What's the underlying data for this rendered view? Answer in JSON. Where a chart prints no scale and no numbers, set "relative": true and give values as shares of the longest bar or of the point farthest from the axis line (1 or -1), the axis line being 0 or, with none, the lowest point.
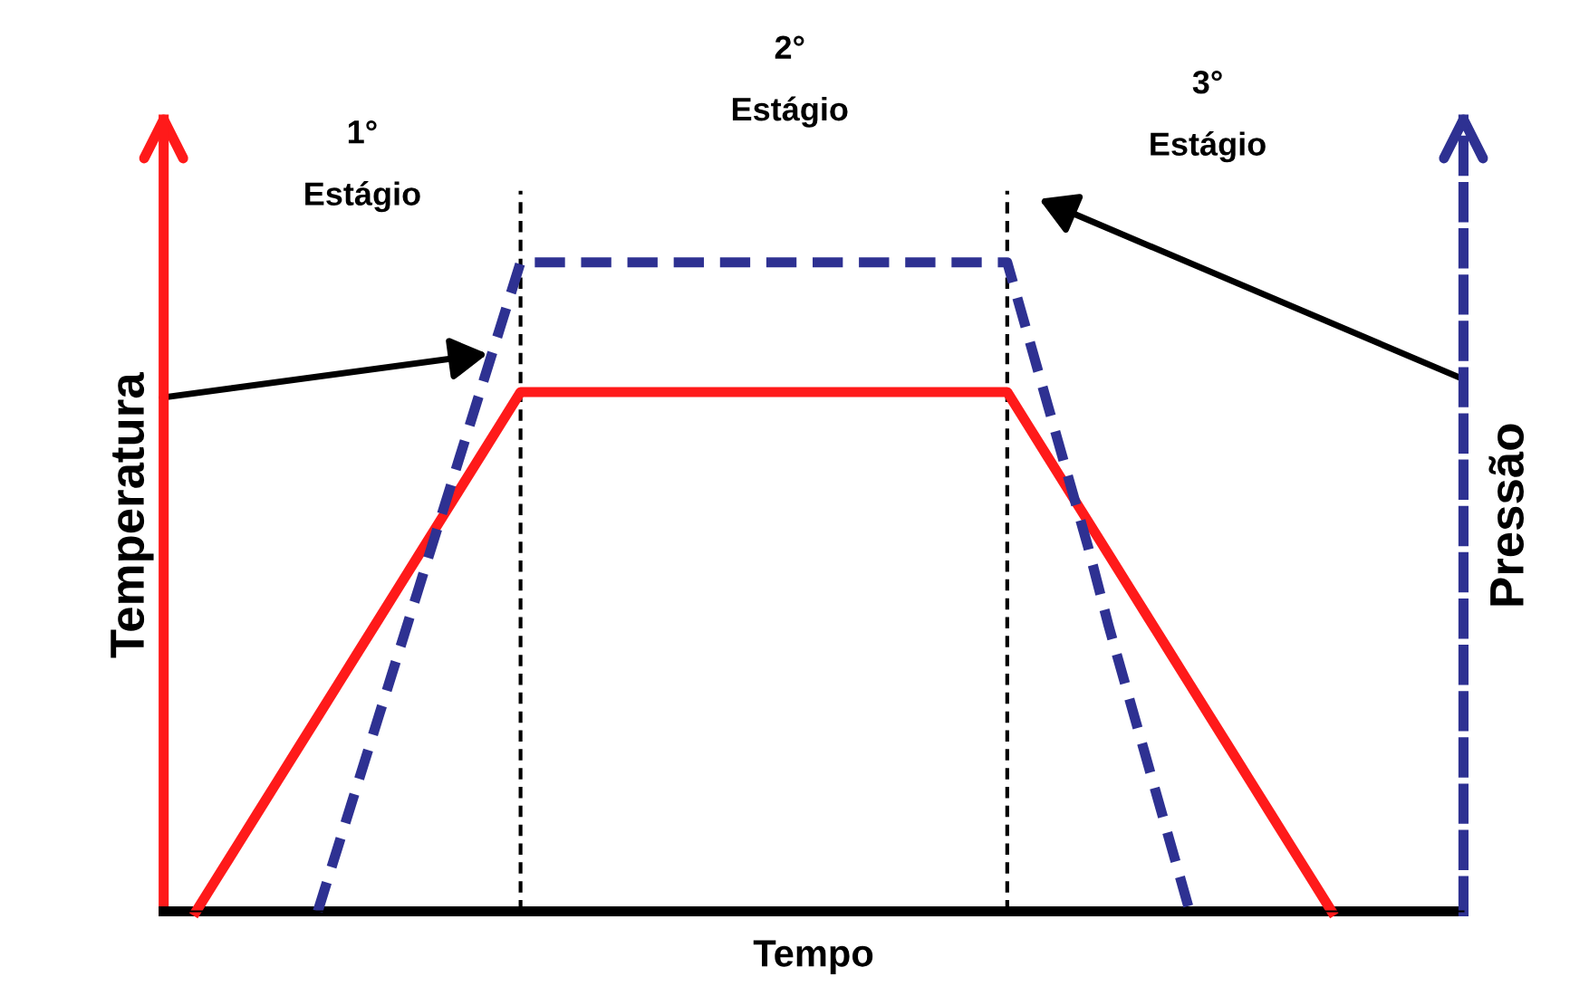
{
  "chart_data": {
    "type": "line",
    "relative": true,
    "xlabel": "Tempo",
    "ylabel": "Temperatura",
    "y2label": "Pressão",
    "legend": false,
    "marker": "none",
    "annotations": [
      "1°\nEstágio",
      "2°\nEstágio",
      "3°\nEstágio"
    ],
    "categories": [
      null,
      null,
      null,
      null,
      null,
      null,
      null,
      null,
      null,
      null,
      null,
      null,
      null,
      null,
      null,
      null,
      null,
      null,
      null,
      null,
      null,
      null,
      null,
      null,
      null,
      null,
      null,
      null,
      null,
      null,
      null,
      null,
      null,
      null,
      null,
      null,
      null,
      null,
      null,
      null,
      null,
      null,
      null,
      null,
      null,
      null,
      null,
      null,
      null,
      null,
      null,
      null,
      null,
      null,
      null,
      null,
      null
    ],
    "series": [
      {
        "color": "#ff1a1a",
        "line_style": "solid",
        "values": [
          0,
          0.05,
          0.1,
          0.15,
          0.2,
          0.25,
          0.3,
          0.35,
          0.4,
          0.45,
          0.5,
          0.55,
          0.6,
          0.65,
          0.7,
          0.75,
          0.8,
          0.8,
          0.8,
          0.8,
          0.8,
          0.8,
          0.8,
          0.8,
          0.8,
          0.8,
          0.8,
          0.8,
          0.8,
          0.8,
          0.8,
          0.8,
          0.8,
          0.8,
          0.8,
          0.8,
          0.8,
          0.8,
          0.8,
          0.8,
          0.8,
          0.75,
          0.7,
          0.65,
          0.6,
          0.55,
          0.5,
          0.45,
          0.4,
          0.35,
          0.3,
          0.25,
          0.2,
          0.15,
          0.1,
          0.05,
          0
        ]
      },
      {
        "color": "#2e3192",
        "line_style": "dashed",
        "values": [
          null,
          null,
          null,
          null,
          null,
          null,
          0,
          0.1,
          0.2,
          0.3,
          0.4,
          0.5,
          0.6,
          0.7,
          0.8,
          0.9,
          1,
          1,
          1,
          1,
          1,
          1,
          1,
          1,
          1,
          1,
          1,
          1,
          1,
          1,
          1,
          1,
          1,
          1,
          1,
          1,
          1,
          1,
          1,
          1,
          1,
          0.89,
          0.78,
          0.67,
          0.56,
          0.44,
          0.33,
          0.22,
          0.11,
          0,
          null,
          null,
          null,
          null,
          null,
          null,
          null
        ]
      }
    ]
  }
}
